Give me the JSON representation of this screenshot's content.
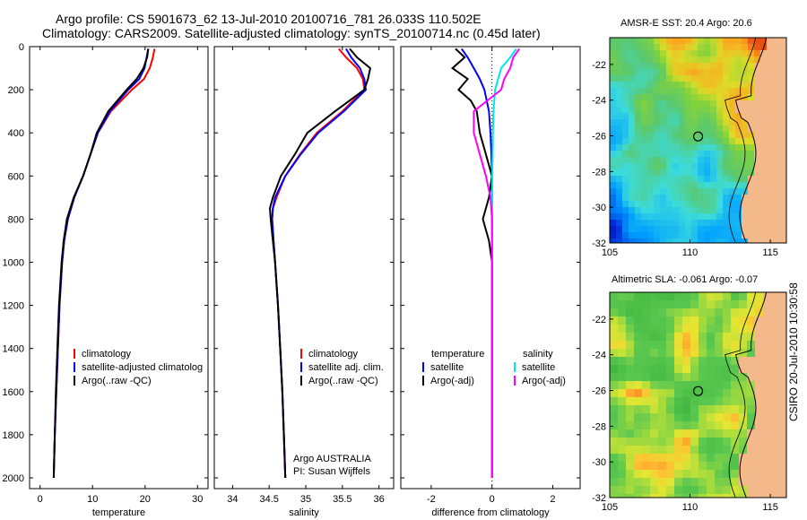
{
  "header": {
    "line1": "Argo profile: CS 5901673_62 13-Jul-2010 20100716_781 26.033S 110.502E",
    "line2": "Climatology: CARS2009. Satellite-adjusted climatology: synTS_20100714.nc (0.45d later)"
  },
  "right_panels": {
    "sst_title": "AMSR-E SST: 20.4 Argo: 20.6",
    "sla_title": "Altimetric SLA: -0.061 Argo: -0.07",
    "stamp": "CSIRO 20-Jul-2010 10:30:58",
    "argo_position": {
      "lon": 110.502,
      "lat": -26.033
    },
    "lon_ticks": [
      "105",
      "110",
      "115"
    ],
    "lat_ticks": [
      "-22",
      "-24",
      "-26",
      "-28",
      "-30",
      "-32"
    ]
  },
  "profile_labels": {
    "argo_line": "Argo AUSTRALIA",
    "pi_line": "PI: Susan Wijffels"
  },
  "chart_data": [
    {
      "type": "line",
      "xlabel": "temperature",
      "ylabel": "",
      "xlim": [
        -2,
        32
      ],
      "ylim": [
        2050,
        0
      ],
      "x_ticks": [
        0,
        10,
        20,
        30
      ],
      "y_ticks": [
        0,
        200,
        400,
        600,
        800,
        1000,
        1200,
        1400,
        1600,
        1800,
        2000
      ],
      "legend": [
        "climatology",
        "satellite-adjusted climatolog",
        "Argo(..raw -QC)"
      ],
      "series": [
        {
          "name": "climatology",
          "color": "#ff0000",
          "depth": [
            10,
            50,
            100,
            150,
            200,
            300,
            400,
            500,
            600,
            700,
            800,
            900,
            1000,
            1200,
            1400,
            1600,
            1800,
            2000
          ],
          "values": [
            21.8,
            21.5,
            20.9,
            19.8,
            17.5,
            13.5,
            11.0,
            9.6,
            8.2,
            6.5,
            5.3,
            4.6,
            4.2,
            3.7,
            3.4,
            3.1,
            2.8,
            2.6
          ]
        },
        {
          "name": "satellite-adjusted climatolog",
          "color": "#0000ff",
          "depth": [
            10,
            50,
            100,
            150,
            200,
            300,
            400,
            500,
            600,
            700,
            800,
            900,
            1000,
            1200,
            1400,
            1600,
            1800,
            2000
          ],
          "values": [
            20.6,
            20.3,
            19.9,
            18.9,
            16.8,
            13.3,
            11.0,
            9.6,
            8.2,
            6.5,
            5.3,
            4.6,
            4.2,
            3.7,
            3.4,
            3.1,
            2.8,
            2.6
          ]
        },
        {
          "name": "Argo(..raw -QC)",
          "color": "#000000",
          "depth": [
            10,
            50,
            100,
            150,
            200,
            300,
            400,
            500,
            600,
            700,
            800,
            900,
            1000,
            1200,
            1400,
            1600,
            1800,
            2000
          ],
          "values": [
            20.6,
            20.4,
            19.7,
            18.4,
            16.5,
            13.0,
            10.8,
            9.6,
            8.2,
            6.4,
            5.1,
            4.5,
            4.1,
            3.6,
            3.3,
            3.0,
            2.8,
            2.6
          ]
        }
      ]
    },
    {
      "type": "line",
      "xlabel": "salinity",
      "ylabel": "",
      "xlim": [
        33.75,
        36.2
      ],
      "ylim": [
        2050,
        0
      ],
      "x_ticks": [
        34,
        34.5,
        35,
        35.5,
        36
      ],
      "y_ticks": [
        0,
        200,
        400,
        600,
        800,
        1000,
        1200,
        1400,
        1600,
        1800,
        2000
      ],
      "legend": [
        "climatology",
        "satellite adj. clim.",
        "Argo(..raw -QC)"
      ],
      "series": [
        {
          "name": "climatology",
          "color": "#ff0000",
          "depth": [
            10,
            50,
            100,
            150,
            200,
            300,
            400,
            500,
            600,
            700,
            750,
            800,
            900,
            1000,
            1200,
            1400,
            1600,
            1800,
            2000
          ],
          "values": [
            35.45,
            35.55,
            35.7,
            35.78,
            35.8,
            35.5,
            35.15,
            34.92,
            34.72,
            34.6,
            34.55,
            34.54,
            34.56,
            34.58,
            34.62,
            34.65,
            34.68,
            34.7,
            34.72
          ]
        },
        {
          "name": "satellite adj. clim.",
          "color": "#0000ff",
          "depth": [
            10,
            50,
            100,
            150,
            200,
            300,
            400,
            500,
            600,
            700,
            750,
            800,
            900,
            1000,
            1200,
            1400,
            1600,
            1800,
            2000
          ],
          "values": [
            35.55,
            35.62,
            35.74,
            35.8,
            35.82,
            35.52,
            35.17,
            34.93,
            34.72,
            34.58,
            34.55,
            34.54,
            34.56,
            34.58,
            34.62,
            34.65,
            34.68,
            34.7,
            34.72
          ]
        },
        {
          "name": "Argo(..raw -QC)",
          "color": "#000000",
          "depth": [
            10,
            50,
            100,
            150,
            200,
            300,
            400,
            500,
            600,
            700,
            750,
            800,
            900,
            1000,
            1200,
            1400,
            1600,
            1800,
            2000
          ],
          "values": [
            35.6,
            35.7,
            35.88,
            35.85,
            35.8,
            35.4,
            35.02,
            34.85,
            34.66,
            34.55,
            34.51,
            34.52,
            34.55,
            34.58,
            34.62,
            34.65,
            34.68,
            34.7,
            34.72
          ]
        }
      ]
    },
    {
      "type": "line",
      "xlabel": "difference from climatology",
      "ylabel": "",
      "xlim": [
        -3,
        2.9
      ],
      "ylim": [
        2050,
        0
      ],
      "x_ticks": [
        -2,
        0,
        2
      ],
      "y_ticks": [
        0,
        200,
        400,
        600,
        800,
        1000,
        1200,
        1400,
        1600,
        1800,
        2000
      ],
      "legend_headers": [
        "temperature",
        "salinity"
      ],
      "legend": [
        "satellite",
        "Argo(-adj)",
        "satellite",
        "Argo(-adj)"
      ],
      "series": [
        {
          "name": "satellite",
          "group": "temperature",
          "color": "#0000ff",
          "depth": [
            10,
            50,
            100,
            150,
            200,
            300,
            400,
            500,
            600,
            700,
            800,
            1000,
            1400,
            2000
          ],
          "values": [
            -1.0,
            -0.8,
            -0.6,
            -0.4,
            -0.25,
            -0.1,
            -0.05,
            -0.02,
            0.0,
            0.0,
            0.0,
            0.0,
            0.0,
            0.0
          ]
        },
        {
          "name": "Argo(-adj)",
          "group": "temperature",
          "color": "#000000",
          "depth": [
            10,
            50,
            100,
            150,
            200,
            250,
            300,
            400,
            500,
            600,
            700,
            800,
            900,
            1000,
            1200,
            1400,
            1600,
            2000
          ],
          "values": [
            -1.2,
            -0.9,
            -1.3,
            -0.8,
            -1.1,
            -0.7,
            -0.5,
            -0.4,
            -0.2,
            0.0,
            -0.1,
            -0.3,
            -0.1,
            0.0,
            0.0,
            0.0,
            0.0,
            0.0
          ]
        },
        {
          "name": "satellite",
          "group": "salinity",
          "color": "#00e5ee",
          "depth": [
            10,
            50,
            100,
            150,
            200,
            300,
            400,
            500,
            600,
            800,
            1000,
            1400,
            2000
          ],
          "values": [
            0.8,
            0.6,
            0.3,
            0.2,
            0.1,
            0.05,
            0.03,
            0.02,
            0.01,
            0.0,
            0.0,
            0.0,
            0.0
          ]
        },
        {
          "name": "Argo(-adj)",
          "group": "salinity",
          "color": "#ff00ff",
          "depth": [
            10,
            50,
            100,
            150,
            200,
            300,
            400,
            500,
            600,
            700,
            800,
            1000,
            1200,
            1400,
            1600,
            1800,
            2000
          ],
          "values": [
            0.9,
            0.7,
            0.6,
            0.4,
            0.3,
            -0.6,
            -0.6,
            -0.4,
            -0.2,
            -0.05,
            0.0,
            0.0,
            0.0,
            0.0,
            0.0,
            0.0,
            0.0
          ]
        }
      ]
    },
    {
      "type": "heatmap",
      "title": "AMSR-E SST: 20.4 Argo: 20.6",
      "xlim": [
        105,
        116
      ],
      "ylim": [
        -32,
        -20.5
      ],
      "x_ticks": [
        105,
        110,
        115
      ],
      "y_ticks": [
        -22,
        -24,
        -26,
        -28,
        -30,
        -32
      ]
    },
    {
      "type": "heatmap",
      "title": "Altimetric SLA: -0.061 Argo: -0.07",
      "xlim": [
        105,
        116
      ],
      "ylim": [
        -32,
        -20.5
      ],
      "x_ticks": [
        105,
        110,
        115
      ],
      "y_ticks": [
        -22,
        -24,
        -26,
        -28,
        -30,
        -32
      ]
    }
  ]
}
